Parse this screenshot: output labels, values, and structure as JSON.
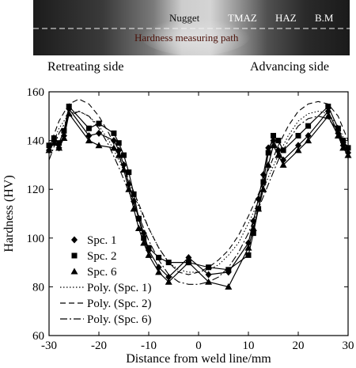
{
  "micrograph": {
    "labels": {
      "nugget": "Nugget",
      "tmaz": "TMAZ",
      "haz": "HAZ",
      "bm": "B.M",
      "path": "Hardness measuring path"
    }
  },
  "sides": {
    "left": "Retreating side",
    "right": "Advancing side"
  },
  "chart_data": {
    "type": "line",
    "title": "",
    "xlabel": "Distance from weld line/mm",
    "ylabel": "Hardness (HV)",
    "xlim": [
      -30,
      30
    ],
    "ylim": [
      60,
      160
    ],
    "xticks": [
      -30,
      -20,
      -10,
      0,
      10,
      20,
      30
    ],
    "yticks": [
      60,
      80,
      100,
      120,
      140,
      160
    ],
    "grid": false,
    "legend_position": "bottom-left",
    "series": [
      {
        "name": "Spc. 1",
        "marker": "diamond",
        "x": [
          -30,
          -29,
          -28,
          -27,
          -26,
          -22,
          -20,
          -17,
          -16,
          -15,
          -14,
          -13,
          -12,
          -11,
          -10,
          -8,
          -6,
          -2,
          2,
          6,
          10,
          11,
          12,
          13,
          14,
          15,
          16,
          17,
          20,
          22,
          26,
          28,
          29,
          30
        ],
        "y": [
          136,
          140,
          137,
          142,
          153,
          142,
          143,
          140,
          136,
          130,
          122,
          115,
          108,
          102,
          95,
          88,
          84,
          92,
          85,
          86,
          98,
          107,
          116,
          126,
          137,
          140,
          136,
          132,
          138,
          142,
          152,
          143,
          138,
          135
        ]
      },
      {
        "name": "Spc. 2",
        "marker": "square",
        "x": [
          -30,
          -29,
          -28,
          -27,
          -26,
          -22,
          -20,
          -17,
          -16,
          -15,
          -14,
          -13,
          -12,
          -11,
          -10,
          -8,
          -6,
          -2,
          2,
          6,
          10,
          11,
          12,
          13,
          14,
          15,
          16,
          17,
          20,
          22,
          26,
          28,
          29,
          30
        ],
        "y": [
          138,
          141,
          139,
          144,
          154,
          145,
          147,
          143,
          139,
          134,
          127,
          118,
          108,
          100,
          96,
          92,
          90,
          90,
          88,
          87,
          93,
          102,
          112,
          123,
          135,
          142,
          140,
          136,
          142,
          146,
          154,
          145,
          140,
          137
        ]
      },
      {
        "name": "Spc. 6",
        "marker": "triangle",
        "x": [
          -30,
          -29,
          -28,
          -27,
          -26,
          -22,
          -20,
          -17,
          -16,
          -15,
          -14,
          -13,
          -12,
          -11,
          -10,
          -8,
          -6,
          -2,
          2,
          6,
          10,
          11,
          12,
          13,
          14,
          15,
          16,
          17,
          20,
          22,
          26,
          28,
          29,
          30
        ],
        "y": [
          136,
          139,
          137,
          141,
          151,
          140,
          138,
          137,
          134,
          128,
          120,
          112,
          104,
          98,
          93,
          86,
          82,
          90,
          82,
          80,
          96,
          104,
          112,
          120,
          130,
          138,
          134,
          130,
          136,
          140,
          150,
          142,
          137,
          134
        ]
      },
      {
        "name": "Poly. (Spc. 1)",
        "style": "dotted",
        "x": [
          -30,
          -28,
          -26,
          -24,
          -22,
          -20,
          -18,
          -16,
          -14,
          -12,
          -10,
          -8,
          -6,
          -4,
          -2,
          0,
          2,
          4,
          6,
          8,
          10,
          12,
          14,
          16,
          18,
          20,
          22,
          24,
          26,
          28,
          30
        ],
        "y": [
          135,
          145,
          151,
          152,
          150,
          146,
          140,
          132,
          123,
          113,
          104,
          96,
          90,
          87,
          86,
          86,
          87,
          89,
          93,
          98,
          106,
          115,
          125,
          134,
          142,
          148,
          151,
          152,
          151,
          146,
          137
        ]
      },
      {
        "name": "Poly. (Spc. 2)",
        "style": "dashed",
        "x": [
          -30,
          -28,
          -26,
          -24,
          -22,
          -20,
          -18,
          -16,
          -14,
          -12,
          -10,
          -8,
          -6,
          -4,
          -2,
          0,
          2,
          4,
          6,
          8,
          10,
          12,
          14,
          16,
          18,
          20,
          22,
          24,
          26,
          28,
          30
        ],
        "y": [
          137,
          148,
          155,
          157,
          155,
          150,
          143,
          134,
          124,
          114,
          104,
          96,
          90,
          86,
          85,
          86,
          88,
          91,
          95,
          101,
          109,
          118,
          128,
          138,
          146,
          152,
          155,
          156,
          155,
          150,
          140
        ]
      },
      {
        "name": "Poly. (Spc. 6)",
        "style": "dashdot",
        "x": [
          -30,
          -28,
          -26,
          -24,
          -22,
          -20,
          -18,
          -16,
          -14,
          -12,
          -10,
          -8,
          -6,
          -4,
          -2,
          0,
          2,
          4,
          6,
          8,
          10,
          12,
          14,
          16,
          18,
          20,
          22,
          24,
          26,
          28,
          30
        ],
        "y": [
          132,
          143,
          150,
          152,
          150,
          145,
          138,
          129,
          119,
          109,
          99,
          91,
          85,
          82,
          81,
          81,
          82,
          84,
          88,
          94,
          102,
          112,
          122,
          132,
          140,
          146,
          149,
          150,
          149,
          144,
          134
        ]
      }
    ]
  }
}
